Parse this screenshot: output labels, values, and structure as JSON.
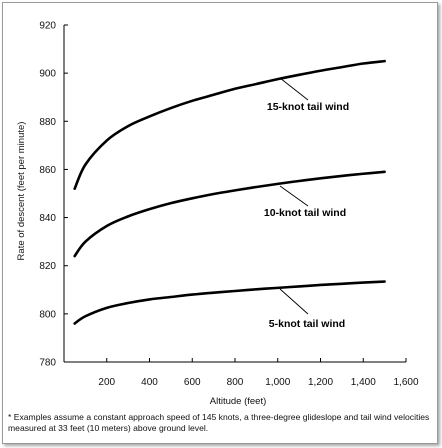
{
  "chart_data": {
    "type": "line",
    "xlabel": "Altitude (feet)",
    "ylabel": "Rate of descent (feet per minute)",
    "xlim": [
      0,
      1600
    ],
    "ylim": [
      780,
      920
    ],
    "xticks": [
      200,
      400,
      600,
      800,
      1000,
      1200,
      1400,
      1600
    ],
    "xtick_labels": [
      "200",
      "400",
      "600",
      "800",
      "1,000",
      "1,200",
      "1,400",
      "1,600"
    ],
    "yticks": [
      780,
      800,
      820,
      840,
      860,
      880,
      900,
      920
    ],
    "ytick_labels": [
      "780",
      "800",
      "820",
      "840",
      "860",
      "880",
      "900",
      "920"
    ],
    "grid": false,
    "series": [
      {
        "name": "15-knot tail wind",
        "x": [
          50,
          100,
          200,
          300,
          400,
          500,
          600,
          700,
          800,
          900,
          1000,
          1100,
          1200,
          1300,
          1400,
          1500
        ],
        "y": [
          852,
          862,
          872,
          878,
          882,
          885.5,
          888.5,
          891,
          893.5,
          895.5,
          897.5,
          899.3,
          901,
          902.5,
          904,
          905
        ]
      },
      {
        "name": "10-knot tail wind",
        "x": [
          50,
          100,
          200,
          300,
          400,
          500,
          600,
          700,
          800,
          900,
          1000,
          1100,
          1200,
          1300,
          1400,
          1500
        ],
        "y": [
          824,
          830,
          836.5,
          840.5,
          843.5,
          846,
          848,
          849.8,
          851.3,
          852.7,
          854,
          855.2,
          856.3,
          857.3,
          858.2,
          859
        ]
      },
      {
        "name": "5-knot tail wind",
        "x": [
          50,
          100,
          200,
          300,
          400,
          500,
          600,
          700,
          800,
          900,
          1000,
          1100,
          1200,
          1300,
          1400,
          1500
        ],
        "y": [
          796,
          799,
          802.5,
          804.5,
          806,
          807,
          808,
          808.8,
          809.5,
          810.2,
          810.8,
          811.4,
          812,
          812.5,
          813,
          813.4
        ]
      }
    ],
    "annotations": [
      "15-knot tail wind",
      "10-knot tail wind",
      "5-knot tail wind"
    ],
    "footnote": "* Examples assume a constant approach speed of 145 knots, a three-degree glideslope and tail wind velocities measured at 33 feet (10 meters) above ground level."
  },
  "colors": {
    "line": "#000000",
    "axis": "#000000",
    "text": "#111111"
  }
}
